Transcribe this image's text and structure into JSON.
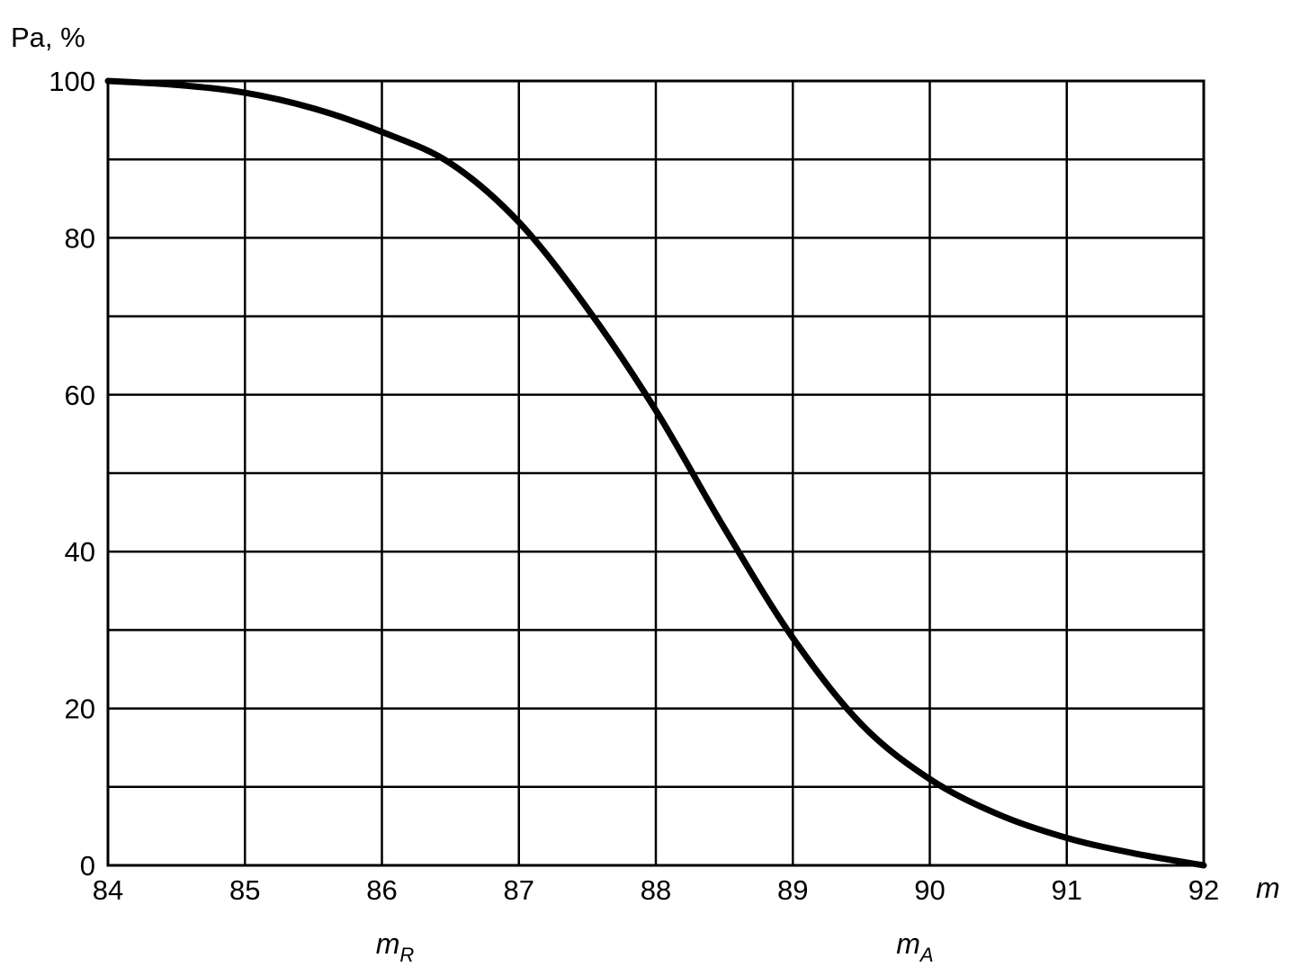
{
  "chart_data": {
    "type": "line",
    "ylabel": "Pa, %",
    "xlabel": "m",
    "xlim": [
      84,
      92
    ],
    "ylim": [
      0,
      100
    ],
    "x_ticks": [
      84,
      85,
      86,
      87,
      88,
      89,
      90,
      91,
      92
    ],
    "y_ticks": [
      0,
      20,
      40,
      60,
      80,
      100
    ],
    "grid": true,
    "series": [
      {
        "x": [
          84,
          84.5,
          85,
          85.5,
          86,
          86.5,
          87,
          87.5,
          88,
          88.5,
          89,
          89.5,
          90,
          90.5,
          91,
          91.5,
          92
        ],
        "y": [
          100,
          99.5,
          98.5,
          96.5,
          93.5,
          89.5,
          82,
          71,
          58,
          43,
          29,
          18,
          11,
          6.5,
          3.5,
          1.5,
          0
        ]
      }
    ],
    "annotations": [
      {
        "label": "m",
        "subscript": "R",
        "x": 86.1
      },
      {
        "label": "m",
        "subscript": "A",
        "x": 89.9
      }
    ]
  }
}
